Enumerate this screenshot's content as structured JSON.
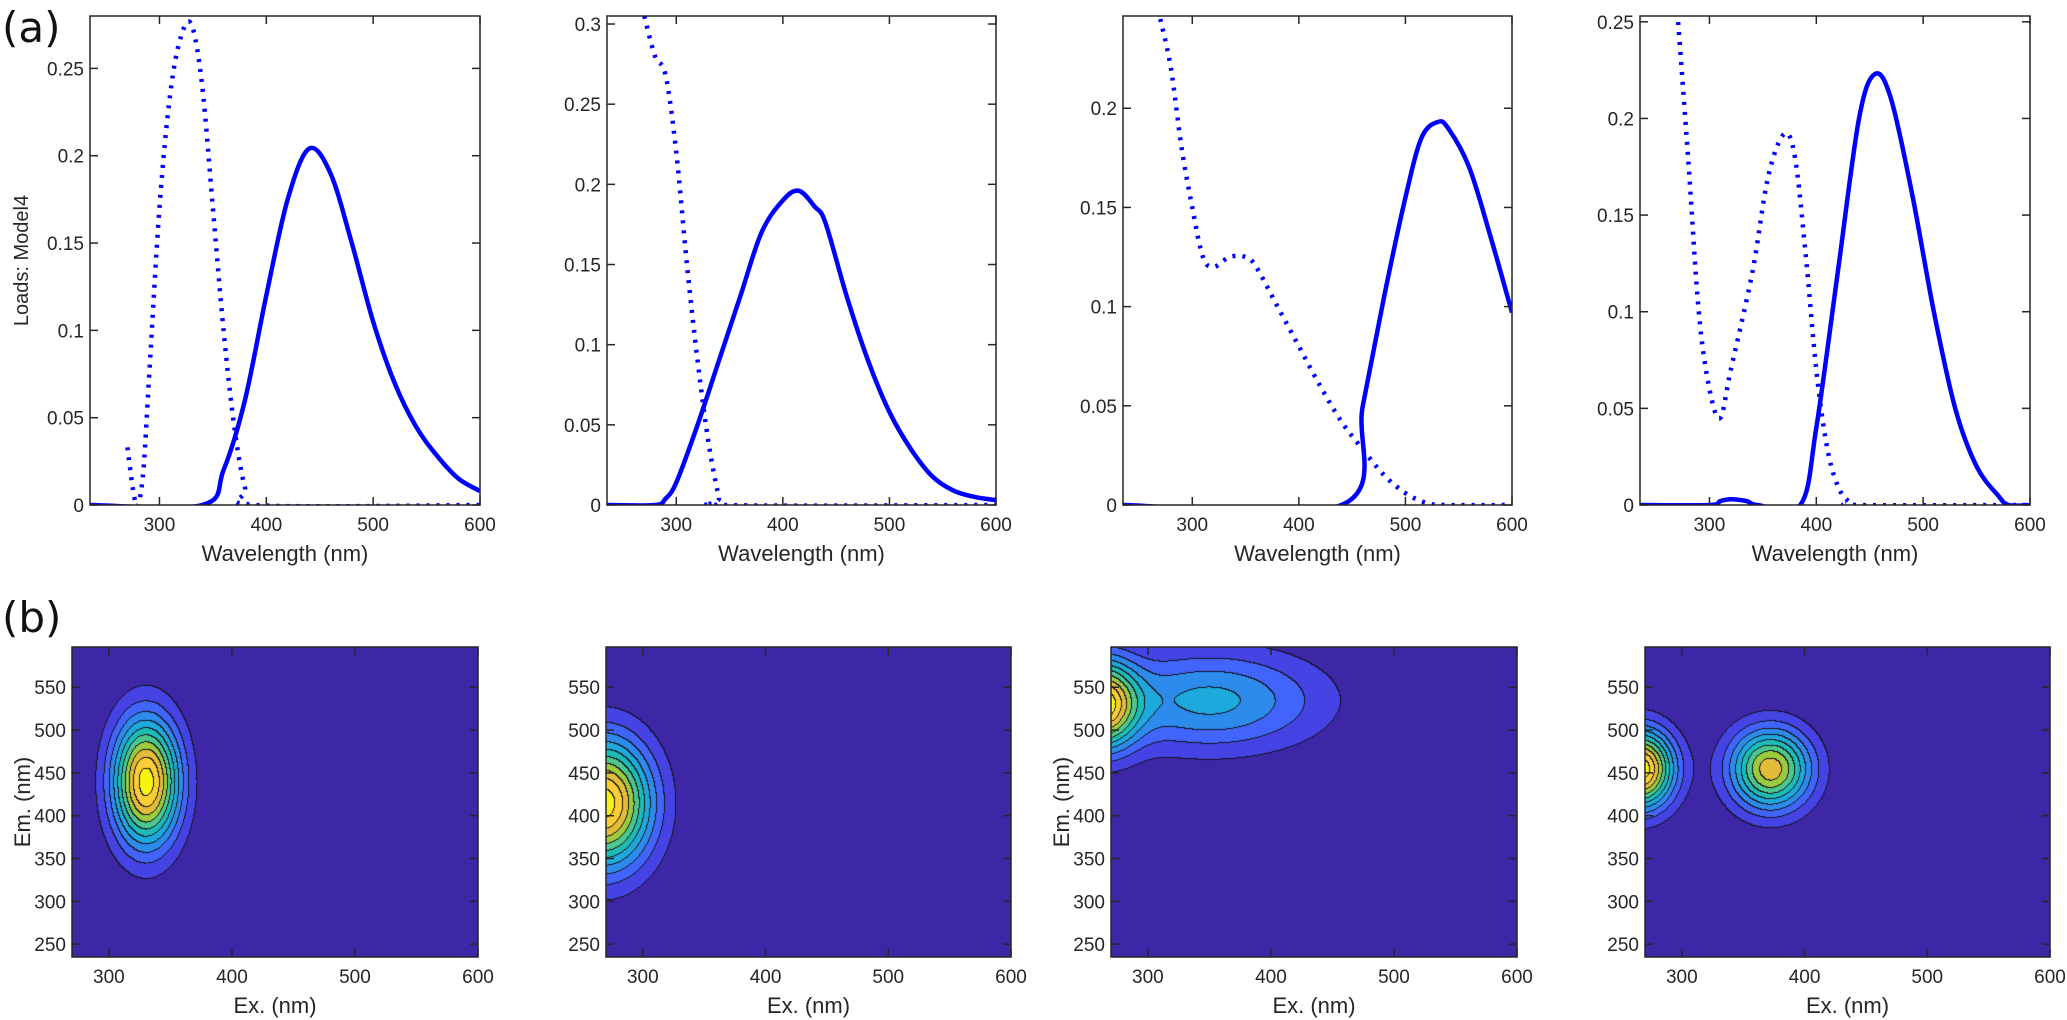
{
  "panel_labels": {
    "a": "(a)",
    "b": "(b)"
  },
  "colors": {
    "line": "#0000ff",
    "axis": "#262626",
    "colormap": [
      "#3e27a7",
      "#4543e3",
      "#4165fb",
      "#2d8bec",
      "#1ea9dc",
      "#1cbdb6",
      "#4cc88e",
      "#9ccb3d",
      "#e3bd3a",
      "#fcce35",
      "#f9f40f"
    ]
  },
  "chart_data": [
    {
      "type": "line",
      "xlabel": "Wavelength (nm)",
      "ylabel": "Loads: Model4",
      "xlim": [
        235,
        600
      ],
      "ylim": [
        0,
        0.28
      ],
      "x_ticks": [
        "300",
        "400",
        "500",
        "600"
      ],
      "y_ticks": [
        "0",
        "0.05",
        "0.1",
        "0.15",
        "0.2",
        "0.25"
      ],
      "series": [
        {
          "style": "solid",
          "x": [
            235,
            340,
            360,
            380,
            400,
            420,
            440,
            460,
            480,
            500,
            520,
            540,
            560,
            580,
            600
          ],
          "y": [
            0,
            0,
            0.02,
            0.06,
            0.12,
            0.175,
            0.204,
            0.19,
            0.15,
            0.105,
            0.07,
            0.045,
            0.028,
            0.015,
            0.008
          ]
        },
        {
          "style": "dotted",
          "x": [
            270,
            276,
            280,
            285,
            290,
            300,
            310,
            320,
            330,
            340,
            350,
            360,
            370,
            380,
            390,
            600
          ],
          "y": [
            0.033,
            0.006,
            0,
            0.02,
            0.07,
            0.17,
            0.235,
            0.268,
            0.275,
            0.24,
            0.17,
            0.1,
            0.045,
            0.01,
            0,
            0
          ]
        }
      ]
    },
    {
      "type": "line",
      "xlabel": "Wavelength (nm)",
      "ylabel": "",
      "xlim": [
        235,
        600
      ],
      "ylim": [
        0,
        0.305
      ],
      "x_ticks": [
        "300",
        "400",
        "500",
        "600"
      ],
      "y_ticks": [
        "0",
        "0.05",
        "0.1",
        "0.15",
        "0.2",
        "0.25",
        "0.3"
      ],
      "series": [
        {
          "style": "solid",
          "x": [
            235,
            280,
            290,
            300,
            320,
            340,
            360,
            380,
            400,
            415,
            430,
            440,
            460,
            480,
            500,
            520,
            540,
            560,
            580,
            600
          ],
          "y": [
            0,
            0,
            0.004,
            0.014,
            0.05,
            0.09,
            0.13,
            0.17,
            0.19,
            0.196,
            0.186,
            0.176,
            0.13,
            0.09,
            0.058,
            0.035,
            0.018,
            0.009,
            0.005,
            0.003
          ]
        },
        {
          "style": "dotted",
          "x": [
            270,
            280,
            290,
            300,
            310,
            320,
            330,
            340,
            345,
            600
          ],
          "y": [
            0.305,
            0.28,
            0.268,
            0.22,
            0.15,
            0.09,
            0.04,
            0.005,
            0,
            0
          ]
        }
      ]
    },
    {
      "type": "line",
      "xlabel": "Wavelength (nm)",
      "ylabel": "",
      "xlim": [
        235,
        600
      ],
      "ylim": [
        0,
        0.2465
      ],
      "x_ticks": [
        "300",
        "400",
        "500",
        "600"
      ],
      "y_ticks": [
        "0",
        "0.05",
        "0.1",
        "0.15",
        "0.2"
      ],
      "series": [
        {
          "style": "solid",
          "x": [
            235,
            440,
            460,
            480,
            500,
            515,
            530,
            540,
            560,
            580,
            600
          ],
          "y": [
            0,
            0,
            0.05,
            0.105,
            0.155,
            0.185,
            0.193,
            0.19,
            0.17,
            0.135,
            0.097
          ]
        },
        {
          "style": "dotted",
          "x": [
            270,
            280,
            290,
            300,
            310,
            320,
            335,
            350,
            360,
            380,
            400,
            420,
            440,
            460,
            480,
            500,
            520,
            540,
            600
          ],
          "y": [
            0.245,
            0.22,
            0.18,
            0.15,
            0.125,
            0.12,
            0.125,
            0.125,
            0.12,
            0.1,
            0.08,
            0.06,
            0.042,
            0.028,
            0.015,
            0.006,
            0.001,
            0,
            0
          ]
        }
      ]
    },
    {
      "type": "line",
      "xlabel": "Wavelength (nm)",
      "ylabel": "",
      "xlim": [
        235,
        600
      ],
      "ylim": [
        0,
        0.253
      ],
      "x_ticks": [
        "300",
        "400",
        "500",
        "600"
      ],
      "y_ticks": [
        "0",
        "0.05",
        "0.1",
        "0.15",
        "0.2",
        "0.25"
      ],
      "series": [
        {
          "style": "solid",
          "x": [
            235,
            300,
            310,
            320,
            335,
            345,
            385,
            400,
            420,
            440,
            455,
            470,
            490,
            510,
            530,
            550,
            570,
            580,
            600
          ],
          "y": [
            0,
            0,
            0.002,
            0.003,
            0.002,
            0,
            0,
            0.04,
            0.12,
            0.2,
            0.223,
            0.21,
            0.16,
            0.1,
            0.05,
            0.02,
            0.005,
            0,
            0
          ]
        },
        {
          "style": "dotted",
          "x": [
            270,
            280,
            290,
            300,
            310,
            320,
            340,
            355,
            370,
            380,
            390,
            400,
            410,
            420,
            430,
            440,
            600
          ],
          "y": [
            0.255,
            0.18,
            0.1,
            0.06,
            0.045,
            0.07,
            0.12,
            0.17,
            0.192,
            0.18,
            0.13,
            0.07,
            0.03,
            0.01,
            0.002,
            0,
            0
          ]
        }
      ]
    },
    {
      "type": "contour",
      "xlabel": "Ex. (nm)",
      "ylabel": "Em. (nm)",
      "xlim": [
        270,
        600
      ],
      "ylim": [
        235,
        597
      ],
      "levels": 10,
      "x_ticks": [
        "300",
        "400",
        "500",
        "600"
      ],
      "y_ticks": [
        "250",
        "300",
        "350",
        "400",
        "450",
        "500",
        "550"
      ],
      "components": [
        {
          "ex": 330,
          "em": 440,
          "sd_ex": 19,
          "sd_em": 52,
          "amp": 1
        }
      ]
    },
    {
      "type": "contour",
      "xlabel": "Ex. (nm)",
      "ylabel": "",
      "xlim": [
        270,
        600
      ],
      "ylim": [
        235,
        597
      ],
      "levels": 10,
      "x_ticks": [
        "300",
        "400",
        "500",
        "600"
      ],
      "y_ticks": [
        "250",
        "300",
        "350",
        "400",
        "450",
        "500",
        "550"
      ],
      "components": [
        {
          "ex": 268,
          "em": 415,
          "sd_ex": 27,
          "sd_em": 52,
          "amp": 1
        }
      ]
    },
    {
      "type": "contour",
      "xlabel": "Ex. (nm)",
      "ylabel": "Em. (nm)",
      "xlim": [
        270,
        600
      ],
      "ylim": [
        235,
        597
      ],
      "levels": 10,
      "x_ticks": [
        "300",
        "400",
        "500",
        "600"
      ],
      "y_ticks": [
        "250",
        "300",
        "350",
        "400",
        "450",
        "500",
        "550"
      ],
      "components": [
        {
          "ex": 262,
          "em": 530,
          "sd_ex": 20,
          "sd_em": 36,
          "amp": 1
        },
        {
          "ex": 350,
          "em": 535,
          "sd_ex": 62,
          "sd_em": 40,
          "amp": 0.46
        }
      ]
    },
    {
      "type": "contour",
      "xlabel": "Ex. (nm)",
      "ylabel": "",
      "xlim": [
        270,
        600
      ],
      "ylim": [
        235,
        597
      ],
      "levels": 10,
      "x_ticks": [
        "300",
        "400",
        "500",
        "600"
      ],
      "y_ticks": [
        "250",
        "300",
        "350",
        "400",
        "450",
        "500",
        "550"
      ],
      "components": [
        {
          "ex": 266,
          "em": 455,
          "sd_ex": 19,
          "sd_em": 32,
          "amp": 1
        },
        {
          "ex": 372,
          "em": 455,
          "sd_ex": 23,
          "sd_em": 33,
          "amp": 0.8
        }
      ]
    }
  ]
}
